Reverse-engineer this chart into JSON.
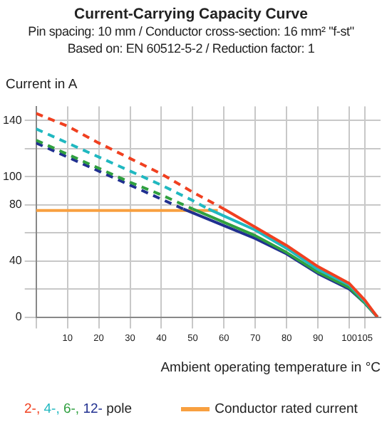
{
  "chart_data": {
    "type": "line",
    "title": "Current-Carrying Capacity Curve",
    "subtitle": "Pin spacing: 10 mm / Conductor cross-section: 16 mm² \"f-st\"\nBased on: EN 60512-5-2 / Reduction factor: 1",
    "xlabel": "Ambient operating temperature in °C",
    "ylabel": "Current in A",
    "legend_title": "pole",
    "xlim": [
      0,
      110
    ],
    "xticks": [
      {
        "value": 0,
        "label": null
      },
      10,
      20,
      30,
      40,
      50,
      60,
      70,
      80,
      90,
      100,
      105
    ],
    "ylim": [
      0,
      150
    ],
    "yticks": [
      0,
      {
        "value": 20,
        "label": null
      },
      40,
      {
        "value": 60,
        "label": null
      },
      80,
      100,
      {
        "value": 120,
        "label": null
      },
      140
    ],
    "grid": true,
    "legend": "bottom",
    "marker": "none",
    "series": [
      {
        "name": "2-,",
        "color": "#f04020",
        "line_style": "dashed",
        "x": [
          0,
          10,
          20,
          30,
          40,
          50,
          60
        ],
        "values": [
          145,
          136,
          124,
          113,
          102,
          89,
          77
        ]
      },
      {
        "color": "#f04020",
        "x": [
          60,
          70,
          80,
          90,
          100,
          105,
          109
        ],
        "values": [
          77,
          64,
          51,
          36,
          24,
          12,
          0
        ]
      },
      {
        "name": "4-,",
        "color": "#20b8c0",
        "line_style": "dashed",
        "x": [
          0,
          10,
          20,
          30,
          40,
          50,
          55
        ],
        "values": [
          134,
          124,
          114,
          104,
          94,
          83,
          77
        ]
      },
      {
        "color": "#20b8c0",
        "x": [
          55,
          70,
          80,
          90,
          100,
          105,
          109
        ],
        "values": [
          77,
          62,
          49,
          34,
          23,
          11,
          0
        ]
      },
      {
        "name": "6-,",
        "color": "#30a040",
        "line_style": "dashed",
        "x": [
          0,
          10,
          20,
          30,
          40,
          50
        ],
        "values": [
          126,
          116,
          106,
          96,
          87,
          77
        ]
      },
      {
        "color": "#30a040",
        "x": [
          50,
          70,
          80,
          90,
          100,
          105,
          109
        ],
        "values": [
          77,
          58,
          46,
          32,
          21,
          10,
          0
        ]
      },
      {
        "name": "12-",
        "color": "#203090",
        "line_style": "dashed",
        "x": [
          0,
          10,
          20,
          30,
          40,
          47
        ],
        "values": [
          124,
          114,
          104,
          94,
          84,
          77
        ]
      },
      {
        "color": "#203090",
        "x": [
          47,
          70,
          80,
          90,
          100,
          105,
          109
        ],
        "values": [
          77,
          56,
          45,
          31,
          20,
          10,
          0
        ]
      },
      {
        "name": "Conductor rated current",
        "color": "#f8a040",
        "x": [
          0,
          58
        ],
        "values": [
          76,
          76
        ]
      }
    ]
  }
}
